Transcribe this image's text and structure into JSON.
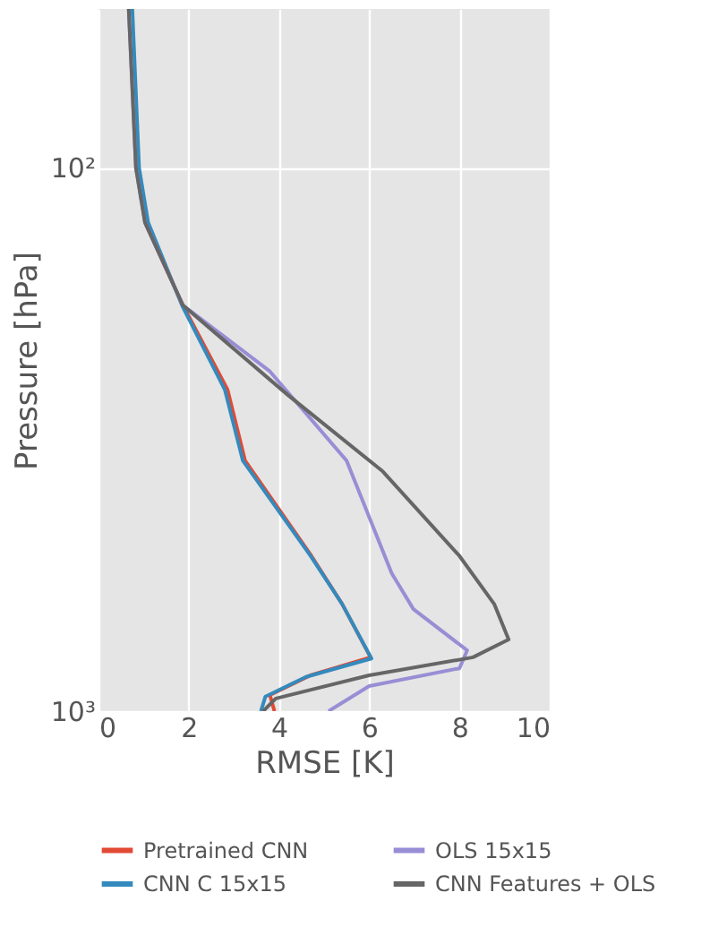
{
  "chart_data": {
    "type": "line",
    "xlabel": "RMSE [K]",
    "ylabel": "Pressure [hPa]",
    "log": "y",
    "xlim": [
      0,
      10
    ],
    "xticks": [
      0,
      2,
      4,
      6,
      8,
      10
    ],
    "ylim": [
      1000,
      51
    ],
    "yticks": [
      {
        "value": 100,
        "label": "10²"
      },
      {
        "value": 1000,
        "label": "10³"
      }
    ],
    "grid": true,
    "legend": "bottom",
    "line_style": "solid",
    "series": [
      {
        "name": "Pretrained CNN",
        "color": "#e24a33",
        "x": [
          1.03,
          1.87,
          2.86,
          3.25,
          4.72,
          5.4,
          6.03,
          4.7,
          3.8,
          3.9
        ],
        "values": [
          126,
          179,
          256,
          346,
          518,
          635,
          796,
          859,
          934,
          1000
        ]
      },
      {
        "name": "CNN C 15x15",
        "color": "#348abd",
        "x": [
          0.75,
          0.9,
          1.1,
          1.85,
          2.8,
          3.2,
          4.7,
          5.4,
          6.05,
          4.6,
          3.7,
          3.6
        ],
        "values": [
          51,
          100,
          126,
          179,
          256,
          346,
          518,
          635,
          800,
          865,
          940,
          1000
        ]
      },
      {
        "name": "OLS 15x15",
        "color": "#988ed5",
        "x": [
          0.67,
          0.83,
          1.03,
          1.87,
          3.8,
          5.5,
          6.5,
          6.98,
          8.17,
          8.0,
          6.0,
          5.1
        ],
        "values": [
          51,
          100,
          126,
          179,
          237,
          346,
          558,
          649,
          773,
          834,
          899,
          1000
        ]
      },
      {
        "name": "CNN Features + OLS",
        "color": "#666666",
        "x": [
          0.67,
          0.83,
          1.03,
          1.87,
          4.2,
          6.3,
          8.0,
          8.77,
          9.09,
          8.3,
          6.0,
          3.93,
          3.65
        ],
        "values": [
          51,
          100,
          126,
          179,
          262,
          362,
          518,
          635,
          738,
          796,
          859,
          948,
          1000
        ]
      }
    ]
  }
}
